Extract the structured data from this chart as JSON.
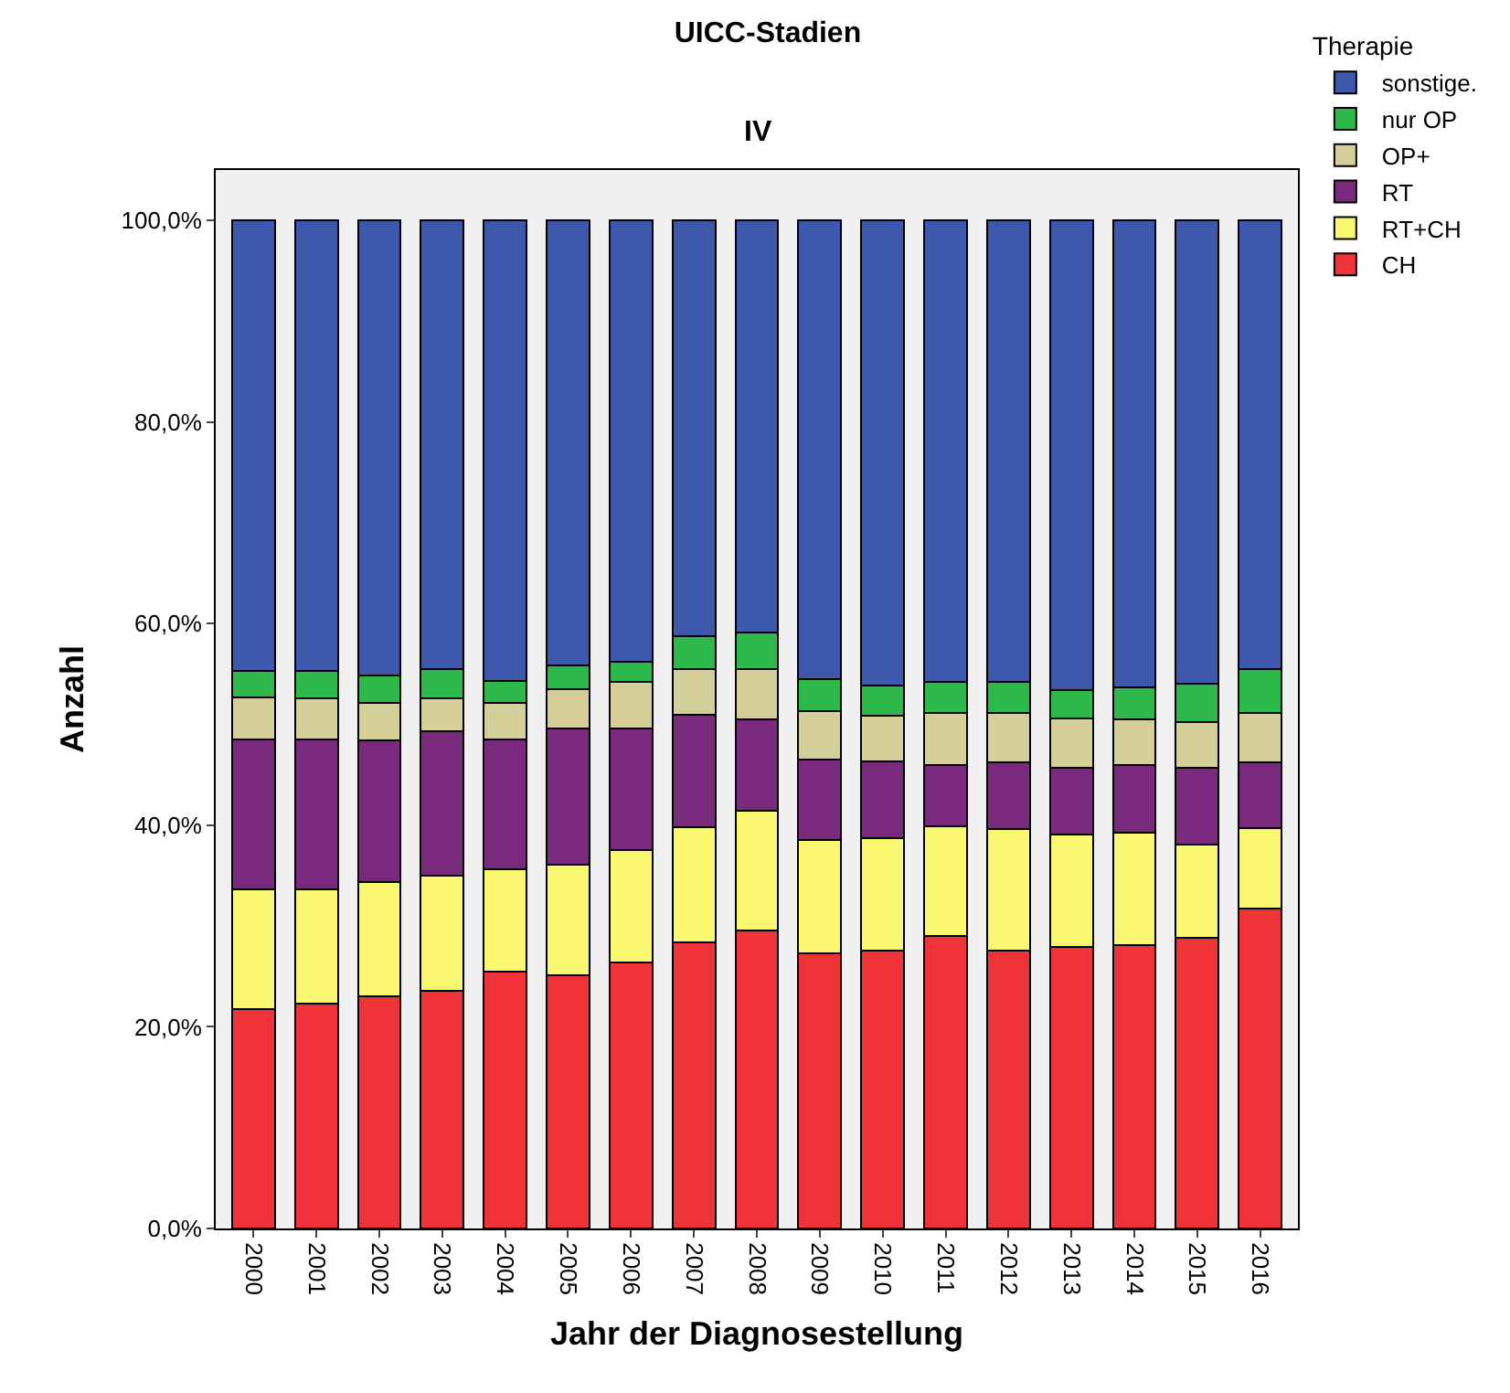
{
  "chart_data": {
    "type": "bar",
    "stacked": true,
    "title": "UICC-Stadien",
    "subtitle": "IV",
    "xlabel": "Jahr der Diagnosestellung",
    "ylabel": "Anzahl",
    "legend_title": "Therapie",
    "legend": "top right",
    "grid": false,
    "categories": [
      "2000",
      "2001",
      "2002",
      "2003",
      "2004",
      "2005",
      "2006",
      "2007",
      "2008",
      "2009",
      "2010",
      "2011",
      "2012",
      "2013",
      "2014",
      "2015",
      "2016"
    ],
    "ylim": [
      0,
      105
    ],
    "yticks": [
      {
        "value": 0,
        "label": "0,0%"
      },
      {
        "value": 20,
        "label": "20,0%"
      },
      {
        "value": 40,
        "label": "40,0%"
      },
      {
        "value": 60,
        "label": "60,0%"
      },
      {
        "value": 80,
        "label": "80,0%"
      },
      {
        "value": 100,
        "label": "100,0%"
      }
    ],
    "series": [
      {
        "name": "CH",
        "color": "#ef3338",
        "values": [
          21.8,
          22.3,
          23.0,
          23.6,
          25.5,
          25.1,
          26.4,
          28.4,
          29.6,
          27.3,
          27.6,
          29.0,
          27.6,
          27.9,
          28.1,
          28.8,
          31.7
        ]
      },
      {
        "name": "RT+CH",
        "color": "#faf870",
        "values": [
          11.8,
          11.3,
          11.4,
          11.4,
          10.1,
          11.0,
          11.1,
          11.4,
          11.8,
          11.2,
          11.1,
          10.9,
          12.0,
          11.2,
          11.2,
          9.3,
          8.0
        ]
      },
      {
        "name": "RT",
        "color": "#7a2a7c",
        "values": [
          14.9,
          14.9,
          14.0,
          14.3,
          12.9,
          13.5,
          12.1,
          11.2,
          9.1,
          8.0,
          7.6,
          6.1,
          6.6,
          6.6,
          6.7,
          7.6,
          6.5
        ]
      },
      {
        "name": "OP+",
        "color": "#d4ce98",
        "values": [
          4.2,
          4.1,
          3.7,
          3.3,
          3.6,
          3.9,
          4.6,
          4.5,
          5.0,
          4.8,
          4.6,
          5.1,
          4.9,
          4.9,
          4.5,
          4.5,
          4.9
        ]
      },
      {
        "name": "nur OP",
        "color": "#2db84a",
        "values": [
          2.6,
          2.7,
          2.8,
          2.9,
          2.2,
          2.4,
          2.0,
          3.3,
          3.6,
          3.2,
          3.0,
          3.1,
          3.1,
          2.8,
          3.2,
          3.8,
          4.4
        ]
      },
      {
        "name": "sonstige.",
        "color": "#3e58ac",
        "values": [
          44.7,
          44.7,
          45.1,
          44.5,
          45.7,
          44.1,
          43.8,
          41.2,
          40.9,
          45.5,
          46.1,
          45.8,
          45.8,
          46.6,
          46.3,
          46.0,
          44.5
        ]
      }
    ]
  }
}
